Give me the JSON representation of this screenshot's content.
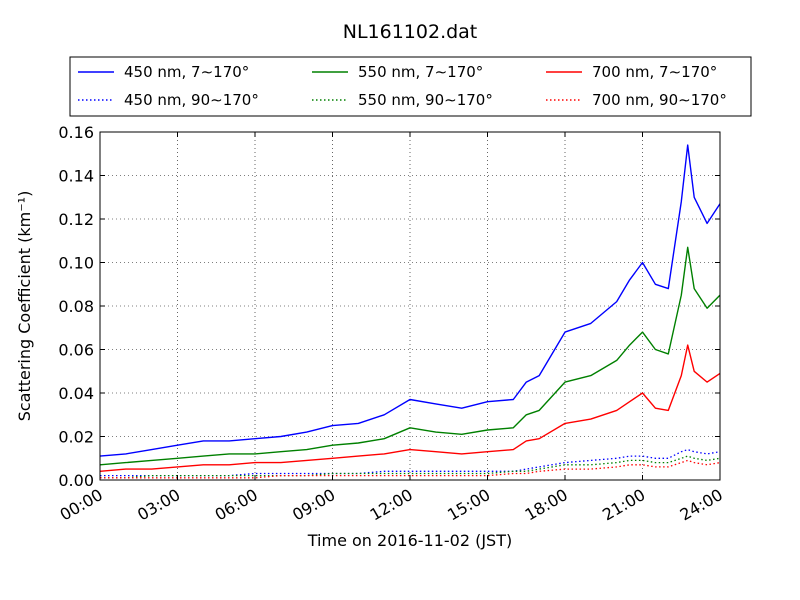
{
  "chart_data": {
    "type": "line",
    "title": "NL161102.dat",
    "xlabel": "Time on 2016-11-02 (JST)",
    "ylabel": "Scattering Coefficient (km⁻¹)",
    "x_tick_labels": [
      "00:00",
      "03:00",
      "06:00",
      "09:00",
      "12:00",
      "15:00",
      "18:00",
      "21:00",
      "24:00"
    ],
    "x_ticks_hours": [
      0,
      3,
      6,
      9,
      12,
      15,
      18,
      21,
      24
    ],
    "y_tick_labels": [
      "0.00",
      "0.02",
      "0.04",
      "0.06",
      "0.08",
      "0.10",
      "0.12",
      "0.14",
      "0.16"
    ],
    "y_ticks": [
      0,
      0.02,
      0.04,
      0.06,
      0.08,
      0.1,
      0.12,
      0.14,
      0.16
    ],
    "xlim": [
      0,
      24
    ],
    "ylim": [
      0,
      0.16
    ],
    "grid": true,
    "legend_placement": "above plot",
    "x": [
      "00:00",
      "01:00",
      "02:00",
      "03:00",
      "04:00",
      "05:00",
      "06:00",
      "07:00",
      "08:00",
      "09:00",
      "10:00",
      "11:00",
      "12:00",
      "13:00",
      "14:00",
      "15:00",
      "16:00",
      "16:30",
      "17:00",
      "18:00",
      "19:00",
      "20:00",
      "20:30",
      "21:00",
      "21:30",
      "22:00",
      "22:30",
      "22:45",
      "23:00",
      "23:30",
      "24:00"
    ],
    "series": [
      {
        "name": "450 nm, 7∼170°",
        "color": "#0000ff",
        "style": "solid",
        "values": [
          0.011,
          0.012,
          0.014,
          0.016,
          0.018,
          0.018,
          0.019,
          0.02,
          0.022,
          0.025,
          0.026,
          0.03,
          0.037,
          0.035,
          0.033,
          0.036,
          0.037,
          0.045,
          0.048,
          0.068,
          0.072,
          0.082,
          0.092,
          0.1,
          0.09,
          0.088,
          0.128,
          0.154,
          0.13,
          0.118,
          0.127
        ]
      },
      {
        "name": "450 nm, 90∼170°",
        "color": "#0000ff",
        "style": "dotted",
        "values": [
          0.002,
          0.002,
          0.002,
          0.002,
          0.002,
          0.002,
          0.003,
          0.003,
          0.003,
          0.003,
          0.003,
          0.004,
          0.004,
          0.004,
          0.004,
          0.004,
          0.004,
          0.005,
          0.006,
          0.008,
          0.009,
          0.01,
          0.011,
          0.011,
          0.01,
          0.01,
          0.013,
          0.014,
          0.013,
          0.012,
          0.013
        ]
      },
      {
        "name": "550 nm, 7∼170°",
        "color": "#008000",
        "style": "solid",
        "values": [
          0.007,
          0.008,
          0.009,
          0.01,
          0.011,
          0.012,
          0.012,
          0.013,
          0.014,
          0.016,
          0.017,
          0.019,
          0.024,
          0.022,
          0.021,
          0.023,
          0.024,
          0.03,
          0.032,
          0.045,
          0.048,
          0.055,
          0.062,
          0.068,
          0.06,
          0.058,
          0.085,
          0.107,
          0.088,
          0.079,
          0.085
        ]
      },
      {
        "name": "550 nm, 90∼170°",
        "color": "#008000",
        "style": "dotted",
        "values": [
          0.001,
          0.001,
          0.002,
          0.002,
          0.002,
          0.002,
          0.002,
          0.002,
          0.002,
          0.003,
          0.003,
          0.003,
          0.003,
          0.003,
          0.003,
          0.003,
          0.004,
          0.004,
          0.005,
          0.007,
          0.007,
          0.008,
          0.009,
          0.009,
          0.008,
          0.008,
          0.01,
          0.011,
          0.01,
          0.009,
          0.01
        ]
      },
      {
        "name": "700 nm, 7∼170°",
        "color": "#ff0000",
        "style": "solid",
        "values": [
          0.004,
          0.005,
          0.005,
          0.006,
          0.007,
          0.007,
          0.008,
          0.008,
          0.009,
          0.01,
          0.011,
          0.012,
          0.014,
          0.013,
          0.012,
          0.013,
          0.014,
          0.018,
          0.019,
          0.026,
          0.028,
          0.032,
          0.036,
          0.04,
          0.033,
          0.032,
          0.048,
          0.062,
          0.05,
          0.045,
          0.049
        ]
      },
      {
        "name": "700 nm, 90∼170°",
        "color": "#ff0000",
        "style": "dotted",
        "values": [
          0.001,
          0.001,
          0.001,
          0.001,
          0.001,
          0.001,
          0.001,
          0.002,
          0.002,
          0.002,
          0.002,
          0.002,
          0.002,
          0.002,
          0.002,
          0.002,
          0.003,
          0.003,
          0.004,
          0.005,
          0.005,
          0.006,
          0.007,
          0.007,
          0.006,
          0.006,
          0.008,
          0.009,
          0.008,
          0.007,
          0.008
        ]
      }
    ],
    "legend": [
      {
        "label": "450 nm, 7∼170°",
        "series": 0
      },
      {
        "label": "550 nm, 7∼170°",
        "series": 2
      },
      {
        "label": "700 nm, 7∼170°",
        "series": 4
      },
      {
        "label": "450 nm, 90∼170°",
        "series": 1
      },
      {
        "label": "550 nm, 90∼170°",
        "series": 3
      },
      {
        "label": "700 nm, 90∼170°",
        "series": 5
      }
    ]
  }
}
